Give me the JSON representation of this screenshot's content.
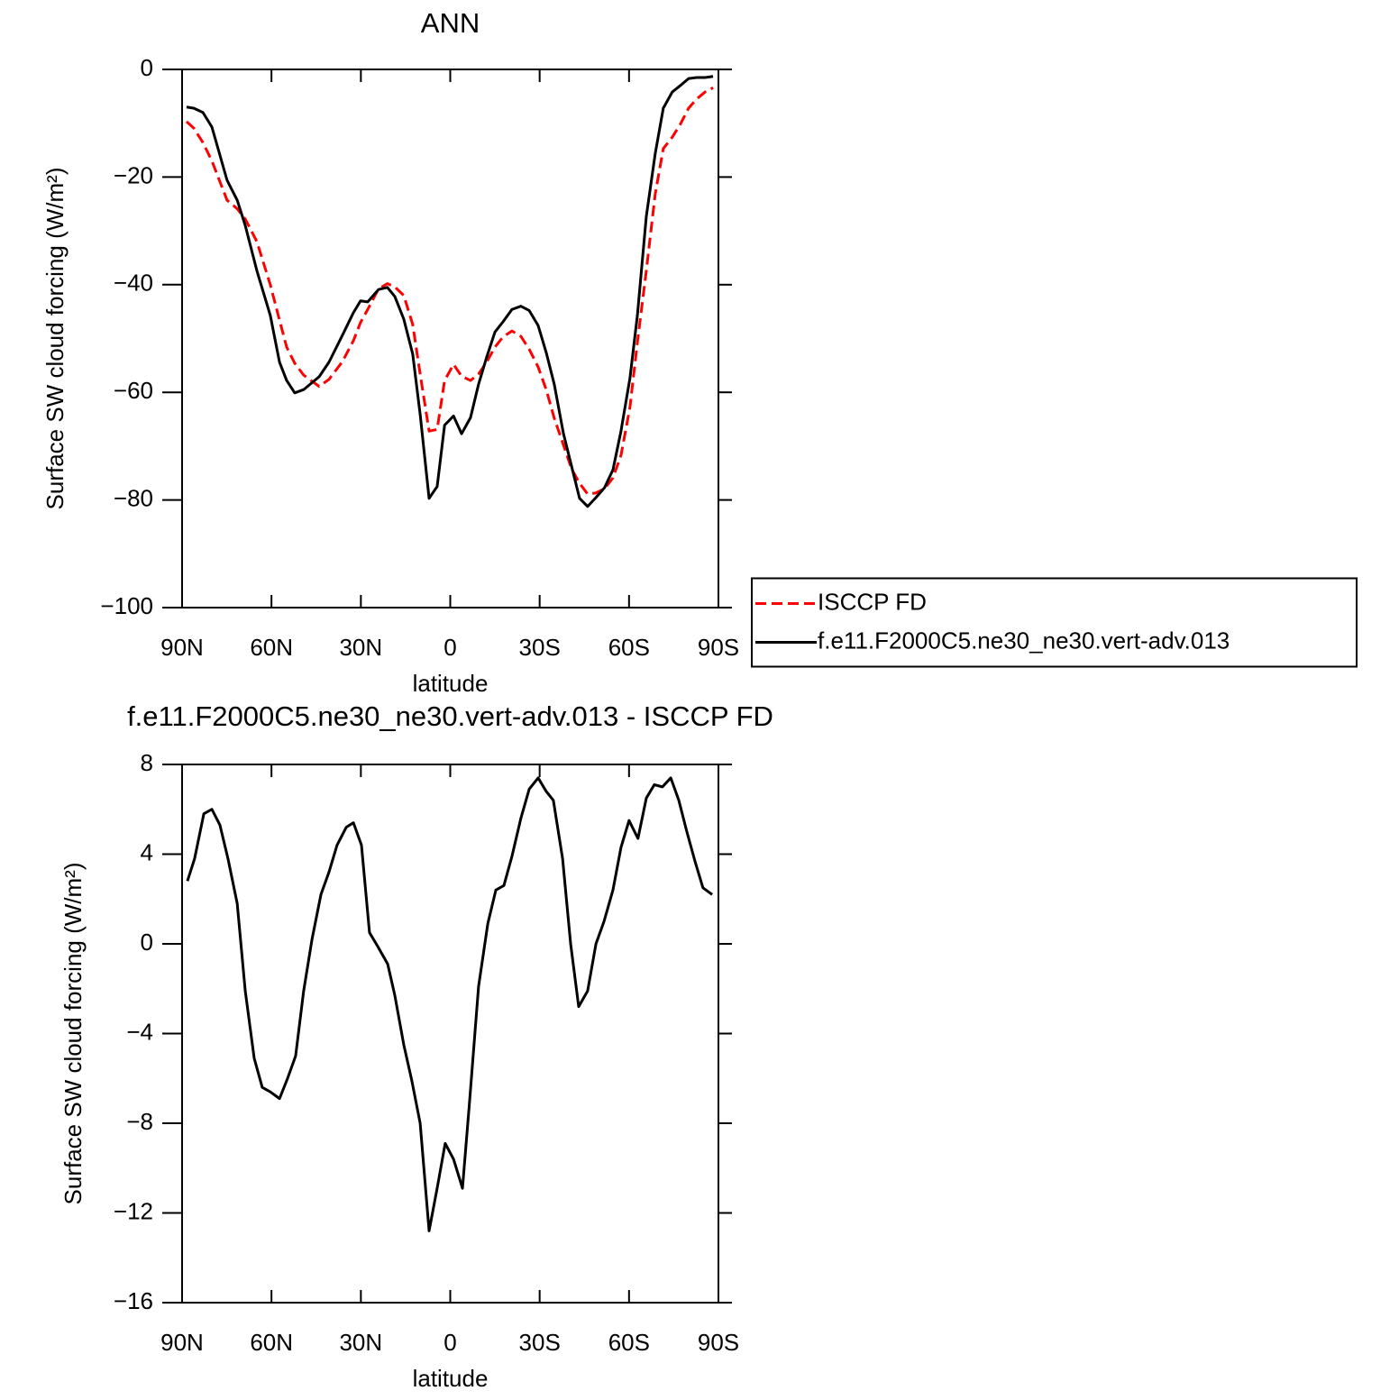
{
  "chart_data": [
    {
      "type": "line",
      "title": "ANN",
      "xlabel": "latitude",
      "ylabel": "Surface SW cloud forcing (W/m²)",
      "xlim": [
        90,
        -90
      ],
      "ylim": [
        -100,
        0
      ],
      "xticks": [
        {
          "value": 90,
          "label": "90N"
        },
        {
          "value": 60,
          "label": "60N"
        },
        {
          "value": 30,
          "label": "30N"
        },
        0,
        {
          "value": -30,
          "label": "30S"
        },
        {
          "value": -60,
          "label": "60S"
        },
        {
          "value": -90,
          "label": "90S"
        }
      ],
      "yticks": [
        0,
        -20,
        -40,
        -60,
        -80,
        -100
      ],
      "legend": "right",
      "x": [
        88.5,
        86.1,
        83.0,
        80.0,
        74.9,
        71.5,
        68.8,
        64.9,
        60.4,
        57.3,
        54.9,
        52.2,
        49.2,
        44.0,
        40.7,
        36.2,
        32.5,
        30.1,
        27.7,
        24.1,
        21.1,
        18.6,
        15.6,
        12.6,
        10.1,
        7.1,
        4.4,
        1.9,
        -1.1,
        -3.8,
        -6.8,
        -9.5,
        -12.2,
        -15.0,
        -17.7,
        -20.7,
        -23.7,
        -26.5,
        -29.5,
        -32.2,
        -34.9,
        -38.0,
        -40.7,
        -43.4,
        -46.1,
        -48.8,
        -51.8,
        -54.6,
        -57.3,
        -60.3,
        -62.8,
        -65.8,
        -68.8,
        -71.5,
        -74.5,
        -77.2,
        -80.0,
        -82.7,
        -85.5,
        -88.2
      ],
      "series": [
        {
          "name": "ISCCP FD",
          "color": "#ff0000",
          "dashed": true,
          "values": [
            -9.7,
            -10.9,
            -13.6,
            -17,
            -24.3,
            -25.9,
            -27.8,
            -32,
            -40,
            -46.6,
            -51.6,
            -54.6,
            -56.8,
            -58.9,
            -57.6,
            -54.3,
            -50.4,
            -47,
            -44.6,
            -40.8,
            -39.8,
            -40.4,
            -42,
            -47.4,
            -56.6,
            -67.2,
            -66.9,
            -57.8,
            -54.8,
            -57,
            -57.8,
            -56.6,
            -54.4,
            -51.6,
            -49.7,
            -48.6,
            -49.6,
            -52,
            -55.3,
            -59.5,
            -64.8,
            -69.8,
            -74.2,
            -76.9,
            -78.9,
            -78.7,
            -77.9,
            -75.9,
            -71.7,
            -62.8,
            -50.7,
            -37.4,
            -23.1,
            -14.7,
            -12.6,
            -10.2,
            -7.2,
            -5.5,
            -4.2,
            -3.4
          ]
        },
        {
          "name": "f.e11.F2000C5.ne30_ne30.vert-adv.013",
          "color": "#000000",
          "dashed": false,
          "values": [
            -7.0,
            -7.2,
            -8,
            -10.7,
            -20.6,
            -24.3,
            -29,
            -37.4,
            -45.7,
            -54.4,
            -57.8,
            -60.1,
            -59.5,
            -57.1,
            -54.4,
            -49.4,
            -45.2,
            -43,
            -43.2,
            -40.9,
            -40.5,
            -42.2,
            -46.4,
            -52.9,
            -64.1,
            -79.7,
            -77.5,
            -66.1,
            -64.4,
            -67.7,
            -64.7,
            -58.5,
            -53.5,
            -48.8,
            -46.9,
            -44.6,
            -44.0,
            -44.8,
            -47.6,
            -52.6,
            -58.5,
            -67.7,
            -73.7,
            -79.7,
            -81.2,
            -79.6,
            -77.7,
            -74.4,
            -67.2,
            -57.4,
            -45.7,
            -27.3,
            -15.6,
            -7.2,
            -4.2,
            -3,
            -1.7,
            -1.5,
            -1.5,
            -1.3
          ]
        }
      ]
    },
    {
      "type": "line",
      "title": "f.e11.F2000C5.ne30_ne30.vert-adv.013 - ISCCP FD",
      "xlabel": "latitude",
      "ylabel": "Surface SW cloud forcing (W/m²)",
      "xlim": [
        90,
        -90
      ],
      "ylim": [
        -16,
        8
      ],
      "xticks": [
        {
          "value": 90,
          "label": "90N"
        },
        {
          "value": 60,
          "label": "60N"
        },
        {
          "value": 30,
          "label": "30N"
        },
        0,
        {
          "value": -30,
          "label": "30S"
        },
        {
          "value": -60,
          "label": "60S"
        },
        {
          "value": -90,
          "label": "90S"
        }
      ],
      "yticks": [
        8,
        4,
        0,
        -4,
        -8,
        -12,
        -16
      ],
      "x": [
        88.2,
        85.8,
        82.7,
        80.0,
        77.3,
        74.6,
        71.5,
        68.8,
        65.8,
        63.1,
        60.4,
        57.3,
        54.6,
        51.9,
        49.2,
        46.4,
        43.4,
        40.7,
        38.0,
        34.9,
        32.5,
        29.8,
        27.1,
        24.4,
        21.0,
        18.6,
        15.6,
        12.9,
        10.1,
        7.1,
        4.4,
        1.7,
        -1.1,
        -4.1,
        -6.5,
        -9.5,
        -12.6,
        -15.3,
        -18.0,
        -20.7,
        -23.7,
        -26.5,
        -29.5,
        -32.2,
        -34.6,
        -37.7,
        -40.4,
        -43.1,
        -46.1,
        -48.9,
        -51.6,
        -54.6,
        -57.3,
        -60.0,
        -63.0,
        -65.8,
        -68.5,
        -71.2,
        -74.0,
        -76.7,
        -79.4,
        -82.1,
        -84.8,
        -87.9
      ],
      "series": [
        {
          "color": "#000000",
          "dashed": false,
          "values": [
            2.8,
            3.8,
            5.8,
            6.0,
            5.3,
            3.8,
            1.8,
            -2.1,
            -5.1,
            -6.4,
            -6.6,
            -6.9,
            -6.0,
            -5.0,
            -2.1,
            0.2,
            2.2,
            3.2,
            4.4,
            5.2,
            5.4,
            4.4,
            0.5,
            -0.1,
            -0.9,
            -2.3,
            -4.5,
            -6.1,
            -8.0,
            -12.8,
            -10.9,
            -8.9,
            -9.6,
            -10.9,
            -7.0,
            -1.9,
            0.9,
            2.4,
            2.6,
            3.9,
            5.6,
            6.9,
            7.4,
            6.8,
            6.4,
            3.8,
            0.0,
            -2.8,
            -2.1,
            0.0,
            1.0,
            2.4,
            4.3,
            5.5,
            4.7,
            6.5,
            7.1,
            7.0,
            7.4,
            6.4,
            5.0,
            3.7,
            2.5,
            2.2
          ]
        }
      ]
    }
  ]
}
